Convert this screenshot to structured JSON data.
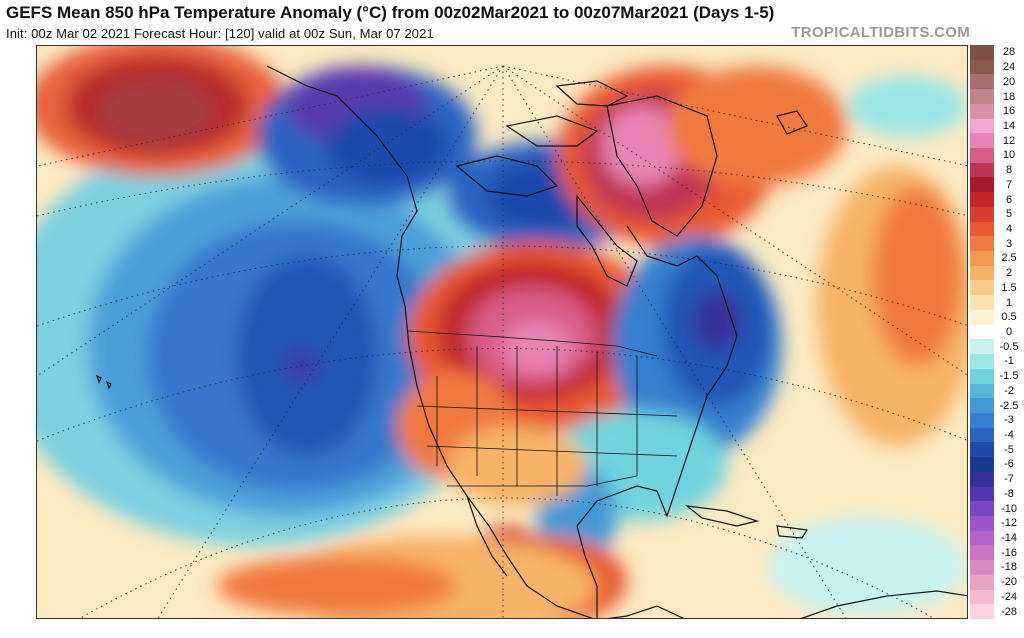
{
  "header": {
    "title": "GEFS Mean 850 hPa Temperature Anomaly (°C) from 00z02Mar2021 to 00z07Mar2021 (Days 1-5)",
    "subtitle": "Init: 00z Mar 02 2021   Forecast Hour: [120]   valid at 00z Sun, Mar 07 2021",
    "brand": "TROPICALTIDBITS.COM"
  },
  "legend": {
    "entries": [
      {
        "label": "28",
        "color": "#7a5346"
      },
      {
        "label": "24",
        "color": "#8c5a4c"
      },
      {
        "label": "20",
        "color": "#a7706e"
      },
      {
        "label": "18",
        "color": "#c0848b"
      },
      {
        "label": "16",
        "color": "#d98fa8"
      },
      {
        "label": "14",
        "color": "#f2a5cc"
      },
      {
        "label": "12",
        "color": "#e884b3"
      },
      {
        "label": "10",
        "color": "#d85c87"
      },
      {
        "label": "8",
        "color": "#bf3552"
      },
      {
        "label": "7",
        "color": "#a6192e"
      },
      {
        "label": "6",
        "color": "#c2282a"
      },
      {
        "label": "5",
        "color": "#d63e2e"
      },
      {
        "label": "4",
        "color": "#e85a33"
      },
      {
        "label": "3",
        "color": "#f0793f"
      },
      {
        "label": "2.5",
        "color": "#f4984f"
      },
      {
        "label": "2",
        "color": "#f6b266"
      },
      {
        "label": "1.5",
        "color": "#f8cd89"
      },
      {
        "label": "1",
        "color": "#fae3ad"
      },
      {
        "label": "0.5",
        "color": "#fdf3d2"
      },
      {
        "label": "0",
        "color": "#ffffff"
      },
      {
        "label": "-0.5",
        "color": "#c8f2f0"
      },
      {
        "label": "-1",
        "color": "#98e6e6"
      },
      {
        "label": "-1.5",
        "color": "#6fd3dd"
      },
      {
        "label": "-2",
        "color": "#53b7dc"
      },
      {
        "label": "-2.5",
        "color": "#4299d6"
      },
      {
        "label": "-3",
        "color": "#3680cf"
      },
      {
        "label": "-4",
        "color": "#2b64c3"
      },
      {
        "label": "-5",
        "color": "#1f49ad"
      },
      {
        "label": "-6",
        "color": "#1a3a92"
      },
      {
        "label": "-7",
        "color": "#35309a"
      },
      {
        "label": "-8",
        "color": "#5535b0"
      },
      {
        "label": "-10",
        "color": "#7a46c6"
      },
      {
        "label": "-12",
        "color": "#9a55cf"
      },
      {
        "label": "-14",
        "color": "#b563cc"
      },
      {
        "label": "-16",
        "color": "#c775c4"
      },
      {
        "label": "-18",
        "color": "#d88ac2"
      },
      {
        "label": "-20",
        "color": "#e6a2c7"
      },
      {
        "label": "-24",
        "color": "#f0bad0"
      },
      {
        "label": "-28",
        "color": "#f9d4de"
      }
    ]
  },
  "map": {
    "ocean_color": "#4a8fd6",
    "coast_color": "#111111"
  }
}
